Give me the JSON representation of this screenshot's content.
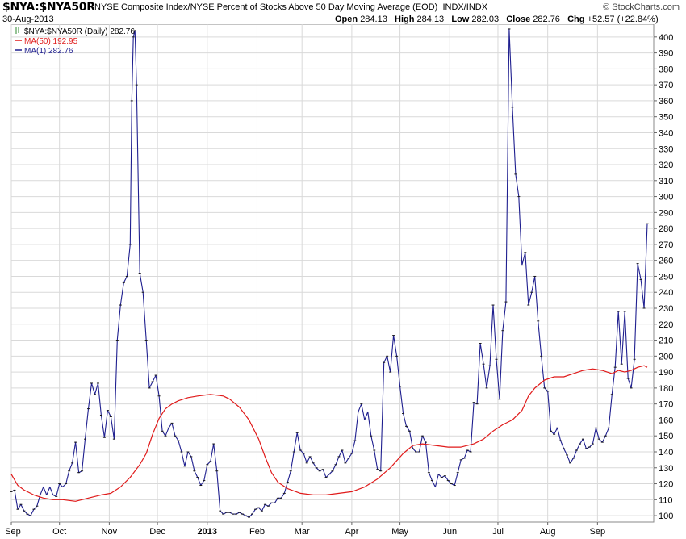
{
  "header": {
    "symbol": "$NYA:$NYA50R",
    "description": "NYSE Composite Index/NYSE Percent of Stocks Above 50 Day Moving Average (EOD)",
    "exchange": "INDX/INDX",
    "date": "30-Aug-2013",
    "brand": "© StockCharts.com",
    "open_label": "Open",
    "open_value": "284.13",
    "high_label": "High",
    "high_value": "284.13",
    "low_label": "Low",
    "low_value": "282.03",
    "close_label": "Close",
    "close_value": "282.76",
    "chg_label": "Chg",
    "chg_value": "+52.57 (+22.84%)"
  },
  "chart_data": {
    "type": "line",
    "legend": [
      {
        "label": "$NYA:$NYA50R (Daily) 282.76",
        "color": "#2d8a2d"
      },
      {
        "label": "MA(50) 192.95",
        "color": "#e01a1a"
      },
      {
        "label": "MA(1) 282.76",
        "color": "#1f1f8f"
      }
    ],
    "ylim": [
      96,
      408
    ],
    "y_ticks": [
      100,
      110,
      120,
      130,
      140,
      150,
      160,
      170,
      180,
      190,
      200,
      210,
      220,
      230,
      240,
      250,
      260,
      270,
      280,
      290,
      300,
      310,
      320,
      330,
      340,
      350,
      360,
      370,
      380,
      390,
      400
    ],
    "grid": true,
    "y_axis_side": "right",
    "x_ticks": [
      {
        "label": "Sep",
        "day": 0,
        "bold": false
      },
      {
        "label": "Oct",
        "day": 30,
        "bold": false
      },
      {
        "label": "Nov",
        "day": 61,
        "bold": false
      },
      {
        "label": "Dec",
        "day": 91,
        "bold": false
      },
      {
        "label": "2013",
        "day": 122,
        "bold": true
      },
      {
        "label": "Feb",
        "day": 153,
        "bold": false
      },
      {
        "label": "Mar",
        "day": 181,
        "bold": false
      },
      {
        "label": "Apr",
        "day": 212,
        "bold": false
      },
      {
        "label": "May",
        "day": 242,
        "bold": false
      },
      {
        "label": "Jun",
        "day": 273,
        "bold": false
      },
      {
        "label": "Jul",
        "day": 303,
        "bold": false
      },
      {
        "label": "Aug",
        "day": 334,
        "bold": false
      },
      {
        "label": "Sep",
        "day": 365,
        "bold": false
      }
    ],
    "series": [
      {
        "name": "MA(1)",
        "color": "#1f1f8f",
        "points": [
          [
            0,
            115
          ],
          [
            2,
            116
          ],
          [
            4,
            104
          ],
          [
            6,
            107
          ],
          [
            8,
            103
          ],
          [
            10,
            101
          ],
          [
            12,
            100
          ],
          [
            14,
            104
          ],
          [
            16,
            106
          ],
          [
            18,
            113
          ],
          [
            20,
            118
          ],
          [
            22,
            113
          ],
          [
            24,
            118
          ],
          [
            26,
            113
          ],
          [
            28,
            112
          ],
          [
            30,
            120
          ],
          [
            32,
            118
          ],
          [
            34,
            120
          ],
          [
            36,
            128
          ],
          [
            38,
            133
          ],
          [
            40,
            146
          ],
          [
            42,
            127
          ],
          [
            44,
            128
          ],
          [
            46,
            148
          ],
          [
            48,
            167
          ],
          [
            50,
            183
          ],
          [
            52,
            176
          ],
          [
            54,
            183
          ],
          [
            56,
            163
          ],
          [
            58,
            149
          ],
          [
            60,
            166
          ],
          [
            62,
            162
          ],
          [
            64,
            148
          ],
          [
            66,
            210
          ],
          [
            68,
            232
          ],
          [
            70,
            246
          ],
          [
            72,
            250
          ],
          [
            74,
            270
          ],
          [
            75,
            360
          ],
          [
            76,
            400
          ],
          [
            77,
            404
          ],
          [
            78,
            370
          ],
          [
            80,
            252
          ],
          [
            82,
            240
          ],
          [
            84,
            210
          ],
          [
            86,
            180
          ],
          [
            88,
            184
          ],
          [
            90,
            188
          ],
          [
            92,
            175
          ],
          [
            94,
            153
          ],
          [
            96,
            150
          ],
          [
            98,
            155
          ],
          [
            100,
            158
          ],
          [
            102,
            150
          ],
          [
            104,
            147
          ],
          [
            106,
            140
          ],
          [
            108,
            131
          ],
          [
            110,
            140
          ],
          [
            112,
            137
          ],
          [
            114,
            128
          ],
          [
            116,
            124
          ],
          [
            118,
            119
          ],
          [
            120,
            122
          ],
          [
            122,
            132
          ],
          [
            124,
            134
          ],
          [
            126,
            145
          ],
          [
            128,
            128
          ],
          [
            130,
            103
          ],
          [
            132,
            101
          ],
          [
            134,
            102
          ],
          [
            136,
            102
          ],
          [
            138,
            101
          ],
          [
            140,
            101
          ],
          [
            142,
            102
          ],
          [
            144,
            101
          ],
          [
            146,
            100
          ],
          [
            148,
            99
          ],
          [
            150,
            101
          ],
          [
            152,
            104
          ],
          [
            154,
            105
          ],
          [
            156,
            103
          ],
          [
            158,
            107
          ],
          [
            160,
            106
          ],
          [
            162,
            108
          ],
          [
            164,
            108
          ],
          [
            166,
            111
          ],
          [
            168,
            111
          ],
          [
            170,
            114
          ],
          [
            172,
            121
          ],
          [
            174,
            128
          ],
          [
            176,
            140
          ],
          [
            178,
            152
          ],
          [
            180,
            141
          ],
          [
            182,
            139
          ],
          [
            184,
            133
          ],
          [
            186,
            137
          ],
          [
            188,
            133
          ],
          [
            190,
            130
          ],
          [
            192,
            128
          ],
          [
            194,
            129
          ],
          [
            196,
            124
          ],
          [
            198,
            126
          ],
          [
            200,
            128
          ],
          [
            202,
            132
          ],
          [
            204,
            137
          ],
          [
            206,
            141
          ],
          [
            208,
            133
          ],
          [
            210,
            136
          ],
          [
            212,
            139
          ],
          [
            214,
            147
          ],
          [
            216,
            165
          ],
          [
            218,
            170
          ],
          [
            220,
            160
          ],
          [
            222,
            165
          ],
          [
            224,
            150
          ],
          [
            226,
            141
          ],
          [
            228,
            129
          ],
          [
            230,
            128
          ],
          [
            232,
            196
          ],
          [
            234,
            200
          ],
          [
            236,
            190
          ],
          [
            238,
            213
          ],
          [
            240,
            200
          ],
          [
            242,
            181
          ],
          [
            244,
            164
          ],
          [
            246,
            156
          ],
          [
            248,
            153
          ],
          [
            250,
            142
          ],
          [
            252,
            140
          ],
          [
            254,
            140
          ],
          [
            256,
            150
          ],
          [
            258,
            146
          ],
          [
            260,
            127
          ],
          [
            262,
            122
          ],
          [
            264,
            118
          ],
          [
            266,
            126
          ],
          [
            268,
            124
          ],
          [
            270,
            125
          ],
          [
            272,
            122
          ],
          [
            274,
            120
          ],
          [
            276,
            119
          ],
          [
            278,
            127
          ],
          [
            280,
            135
          ],
          [
            282,
            136
          ],
          [
            284,
            141
          ],
          [
            286,
            140
          ],
          [
            288,
            171
          ],
          [
            290,
            170
          ],
          [
            292,
            208
          ],
          [
            294,
            195
          ],
          [
            296,
            180
          ],
          [
            298,
            194
          ],
          [
            300,
            232
          ],
          [
            302,
            198
          ],
          [
            304,
            173
          ],
          [
            306,
            216
          ],
          [
            308,
            234
          ],
          [
            310,
            405
          ],
          [
            312,
            356
          ],
          [
            314,
            314
          ],
          [
            316,
            300
          ],
          [
            318,
            257
          ],
          [
            320,
            265
          ],
          [
            322,
            232
          ],
          [
            324,
            240
          ],
          [
            326,
            250
          ],
          [
            328,
            222
          ],
          [
            330,
            200
          ],
          [
            332,
            180
          ],
          [
            334,
            178
          ],
          [
            336,
            153
          ],
          [
            338,
            151
          ],
          [
            340,
            155
          ],
          [
            342,
            147
          ],
          [
            344,
            142
          ],
          [
            346,
            138
          ],
          [
            348,
            133
          ],
          [
            350,
            136
          ],
          [
            352,
            141
          ],
          [
            354,
            145
          ],
          [
            356,
            148
          ],
          [
            358,
            142
          ],
          [
            360,
            143
          ],
          [
            362,
            145
          ],
          [
            364,
            155
          ],
          [
            366,
            148
          ],
          [
            368,
            146
          ],
          [
            370,
            150
          ],
          [
            372,
            155
          ],
          [
            374,
            176
          ],
          [
            376,
            193
          ],
          [
            378,
            228
          ],
          [
            380,
            195
          ],
          [
            382,
            228
          ],
          [
            384,
            186
          ],
          [
            386,
            180
          ],
          [
            388,
            198
          ],
          [
            390,
            258
          ],
          [
            392,
            248
          ],
          [
            394,
            230
          ],
          [
            396,
            283
          ]
        ]
      },
      {
        "name": "MA(50)",
        "color": "#e01a1a",
        "points": [
          [
            0,
            126
          ],
          [
            4,
            119
          ],
          [
            8,
            116
          ],
          [
            14,
            113
          ],
          [
            20,
            111
          ],
          [
            26,
            110
          ],
          [
            32,
            110
          ],
          [
            40,
            109
          ],
          [
            48,
            111
          ],
          [
            56,
            113
          ],
          [
            62,
            114
          ],
          [
            68,
            118
          ],
          [
            74,
            124
          ],
          [
            80,
            132
          ],
          [
            84,
            139
          ],
          [
            88,
            151
          ],
          [
            92,
            161
          ],
          [
            96,
            167
          ],
          [
            100,
            170
          ],
          [
            104,
            172
          ],
          [
            110,
            174
          ],
          [
            116,
            175
          ],
          [
            124,
            176
          ],
          [
            132,
            175
          ],
          [
            136,
            173
          ],
          [
            142,
            168
          ],
          [
            148,
            160
          ],
          [
            154,
            148
          ],
          [
            158,
            137
          ],
          [
            162,
            127
          ],
          [
            166,
            121
          ],
          [
            172,
            117
          ],
          [
            180,
            114
          ],
          [
            188,
            113
          ],
          [
            196,
            113
          ],
          [
            204,
            114
          ],
          [
            212,
            115
          ],
          [
            220,
            118
          ],
          [
            228,
            123
          ],
          [
            236,
            130
          ],
          [
            244,
            139
          ],
          [
            250,
            144
          ],
          [
            256,
            145
          ],
          [
            264,
            144
          ],
          [
            272,
            143
          ],
          [
            280,
            143
          ],
          [
            288,
            145
          ],
          [
            294,
            148
          ],
          [
            300,
            153
          ],
          [
            306,
            157
          ],
          [
            312,
            160
          ],
          [
            318,
            166
          ],
          [
            322,
            175
          ],
          [
            326,
            180
          ],
          [
            332,
            185
          ],
          [
            338,
            187
          ],
          [
            344,
            187
          ],
          [
            350,
            189
          ],
          [
            356,
            191
          ],
          [
            362,
            192
          ],
          [
            368,
            191
          ],
          [
            374,
            189
          ],
          [
            378,
            191
          ],
          [
            382,
            190
          ],
          [
            386,
            191
          ],
          [
            390,
            193
          ],
          [
            394,
            194
          ],
          [
            396,
            193
          ]
        ]
      }
    ]
  }
}
